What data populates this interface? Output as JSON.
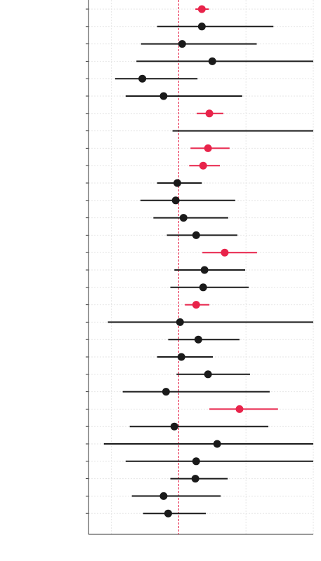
{
  "chart_data": {
    "type": "forest",
    "title": "",
    "xlabel": "",
    "ylabel": "",
    "xlim": [
      -0.335,
      0.5
    ],
    "reference_line": 0,
    "grid": true,
    "colors": {
      "significant": "#e8234a",
      "nonsignificant": "#1a1a1a",
      "reference": "#e8234a",
      "grid": "#e6e6e6",
      "axis": "#333333"
    },
    "rows": [
      {
        "estimate": 0.086,
        "low": 0.062,
        "high": 0.112,
        "significant": true
      },
      {
        "estimate": 0.086,
        "low": -0.08,
        "high": 0.352,
        "significant": false
      },
      {
        "estimate": 0.013,
        "low": -0.14,
        "high": 0.29,
        "significant": false
      },
      {
        "estimate": 0.125,
        "low": -0.157,
        "high": 0.5,
        "significant": false
      },
      {
        "estimate": -0.135,
        "low": -0.236,
        "high": 0.07,
        "significant": false
      },
      {
        "estimate": -0.056,
        "low": -0.197,
        "high": 0.236,
        "significant": false
      },
      {
        "estimate": 0.114,
        "low": 0.067,
        "high": 0.166,
        "significant": true
      },
      {
        "estimate": null,
        "low": -0.023,
        "high": 0.5,
        "significant": false
      },
      {
        "estimate": 0.109,
        "low": 0.044,
        "high": 0.189,
        "significant": true
      },
      {
        "estimate": 0.091,
        "low": 0.039,
        "high": 0.153,
        "significant": true
      },
      {
        "estimate": -0.005,
        "low": -0.08,
        "high": 0.086,
        "significant": false
      },
      {
        "estimate": -0.011,
        "low": -0.142,
        "high": 0.21,
        "significant": false
      },
      {
        "estimate": 0.018,
        "low": -0.094,
        "high": 0.184,
        "significant": false
      },
      {
        "estimate": 0.065,
        "low": -0.044,
        "high": 0.218,
        "significant": false
      },
      {
        "estimate": 0.171,
        "low": 0.088,
        "high": 0.291,
        "significant": true
      },
      {
        "estimate": 0.096,
        "low": -0.016,
        "high": 0.247,
        "significant": false
      },
      {
        "estimate": 0.091,
        "low": -0.031,
        "high": 0.26,
        "significant": false
      },
      {
        "estimate": 0.065,
        "low": 0.023,
        "high": 0.114,
        "significant": true
      },
      {
        "estimate": 0.005,
        "low": -0.263,
        "high": 0.5,
        "significant": false
      },
      {
        "estimate": 0.073,
        "low": -0.039,
        "high": 0.226,
        "significant": false
      },
      {
        "estimate": 0.01,
        "low": -0.08,
        "high": 0.127,
        "significant": false
      },
      {
        "estimate": 0.109,
        "low": -0.008,
        "high": 0.265,
        "significant": false
      },
      {
        "estimate": -0.047,
        "low": -0.208,
        "high": 0.338,
        "significant": false
      },
      {
        "estimate": 0.226,
        "low": 0.114,
        "high": 0.369,
        "significant": true
      },
      {
        "estimate": -0.016,
        "low": -0.182,
        "high": 0.333,
        "significant": false
      },
      {
        "estimate": 0.143,
        "low": -0.278,
        "high": 0.5,
        "significant": false
      },
      {
        "estimate": 0.065,
        "low": -0.197,
        "high": 0.5,
        "significant": false
      },
      {
        "estimate": 0.062,
        "low": -0.031,
        "high": 0.182,
        "significant": false
      },
      {
        "estimate": -0.056,
        "low": -0.174,
        "high": 0.156,
        "significant": false
      },
      {
        "estimate": -0.039,
        "low": -0.132,
        "high": 0.101,
        "significant": false
      }
    ]
  }
}
